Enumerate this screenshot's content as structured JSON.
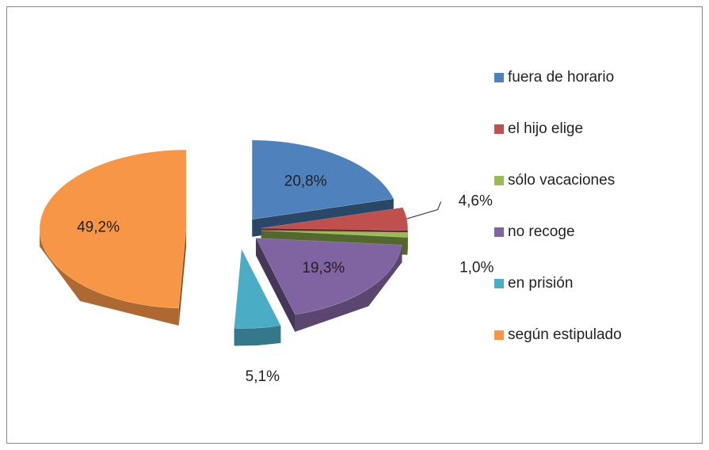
{
  "chart_data": {
    "type": "pie",
    "categories": [
      "fuera de horario",
      "el hijo elige",
      "sólo vacaciones",
      "no recoge",
      "en prisión",
      "según estipulado"
    ],
    "values": [
      20.8,
      4.6,
      1.0,
      19.3,
      5.1,
      49.2
    ],
    "value_labels": [
      "20,8%",
      "4,6%",
      "1,0%",
      "19,3%",
      "5,1%",
      "49,2%"
    ],
    "colors": [
      "#4f81bd",
      "#c0504d",
      "#9bbb59",
      "#8064a2",
      "#4bacc6",
      "#f79646"
    ],
    "legend": "right"
  }
}
